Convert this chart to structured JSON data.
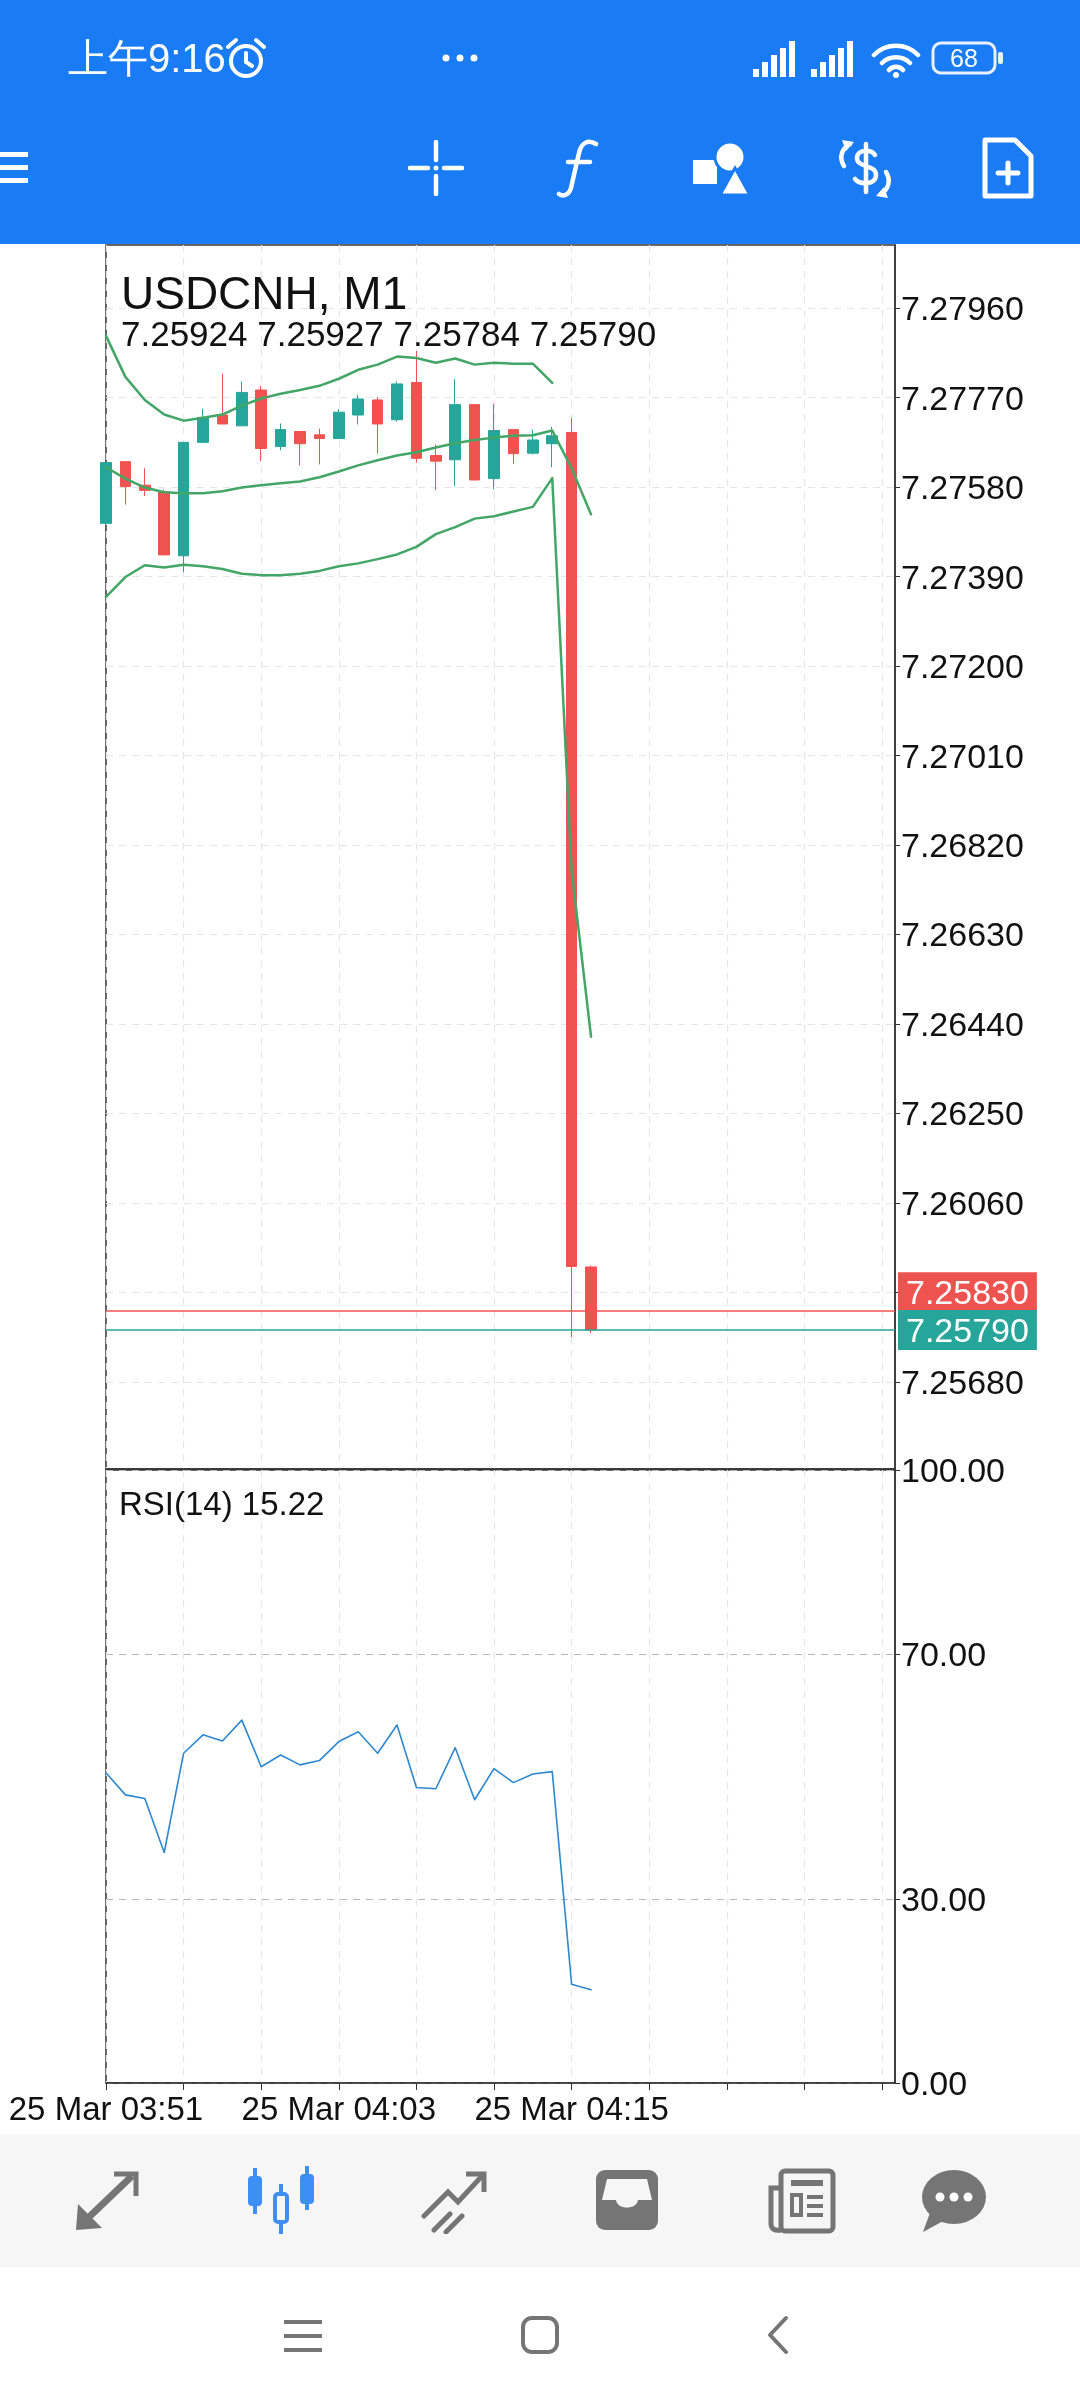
{
  "chart_data": [
    {
      "type": "candlestick",
      "title": "USDCNH, M1",
      "subtitle": "7.25924 7.25927 7.25784 7.25790",
      "annotations": [
        "上午9:16",
        "68"
      ],
      "x": [
        "--03-25T03:51",
        "--03-25T03:52",
        "--03-25T03:53",
        "--03-25T03:54",
        "--03-25T03:55",
        "--03-25T03:56",
        "--03-25T03:57",
        "--03-25T03:58",
        "--03-25T03:59",
        "--03-25T04:00",
        "--03-25T04:01",
        "--03-25T04:02",
        "--03-25T04:03",
        "--03-25T04:04",
        "--03-25T04:05",
        "--03-25T04:06",
        "--03-25T04:07",
        "--03-25T04:08",
        "--03-25T04:09",
        "--03-25T04:10",
        "--03-25T04:11",
        "--03-25T04:12",
        "--03-25T04:13",
        "--03-25T04:14",
        "--03-25T04:15",
        "--03-25T04:16"
      ],
      "ohlc": [
        [
          7.27503,
          7.27632,
          7.27503,
          7.27632
        ],
        [
          7.27634,
          7.27634,
          7.27543,
          7.27581
        ],
        [
          7.27584,
          7.2762,
          7.27561,
          7.27573
        ],
        [
          7.2757,
          7.27575,
          7.27436,
          7.27436
        ],
        [
          7.27434,
          7.27676,
          7.27399,
          7.27675
        ],
        [
          7.27675,
          7.27746,
          7.27675,
          7.27728
        ],
        [
          7.27733,
          7.27821,
          7.27714,
          7.27714
        ],
        [
          7.2771,
          7.27804,
          7.2771,
          7.27781
        ],
        [
          7.27786,
          7.27795,
          7.27635,
          7.27662
        ],
        [
          7.27666,
          7.27715,
          7.27658,
          7.27702
        ],
        [
          7.27698,
          7.27698,
          7.27626,
          7.27672
        ],
        [
          7.27691,
          7.27704,
          7.27628,
          7.27683
        ],
        [
          7.27683,
          7.27746,
          7.27683,
          7.27739
        ],
        [
          7.27733,
          7.27776,
          7.27713,
          7.27767
        ],
        [
          7.27765,
          7.27771,
          7.27651,
          7.27714
        ],
        [
          7.27723,
          7.27804,
          7.27719,
          7.27799
        ],
        [
          7.27802,
          7.27869,
          7.27632,
          7.27641
        ],
        [
          7.27647,
          7.2767,
          7.27573,
          7.27635
        ],
        [
          7.27638,
          7.27809,
          7.27582,
          7.27755
        ],
        [
          7.27755,
          7.27755,
          7.27595,
          7.27595
        ],
        [
          7.27598,
          7.27757,
          7.27575,
          7.277
        ],
        [
          7.27702,
          7.27702,
          7.27629,
          7.27651
        ],
        [
          7.27652,
          7.27702,
          7.27649,
          7.2768
        ],
        [
          7.27672,
          7.27708,
          7.27622,
          7.27689
        ],
        [
          7.27696,
          7.27727,
          7.25775,
          7.25925
        ],
        [
          7.25924,
          7.25927,
          7.25784,
          7.2579
        ]
      ],
      "colors": [
        "#26a69a",
        "#ef5350",
        "#ef5350",
        "#ef5350",
        "#26a69a",
        "#26a69a",
        "#ef5350",
        "#26a69a",
        "#ef5350",
        "#26a69a",
        "#ef5350",
        "#ef5350",
        "#26a69a",
        "#26a69a",
        "#ef5350",
        "#26a69a",
        "#ef5350",
        "#ef5350",
        "#26a69a",
        "#ef5350",
        "#26a69a",
        "#ef5350",
        "#26a69a",
        "#26a69a",
        "#ef5350",
        "#ef5350"
      ],
      "series": [
        {
          "type": "line",
          "color": "#43a566",
          "values": [
            7.27901,
            7.27814,
            7.27765,
            7.27734,
            7.27721,
            7.27727,
            7.27734,
            7.27753,
            7.27768,
            7.27778,
            7.27786,
            7.27795,
            7.2781,
            7.27829,
            7.2784,
            7.27857,
            7.27854,
            7.27844,
            7.27853,
            7.2784,
            7.27844,
            7.27842,
            7.27842,
            7.27801,
            null,
            null
          ]
        },
        {
          "type": "line",
          "color": "#43a566",
          "values": [
            7.27622,
            7.27598,
            7.27579,
            7.27569,
            7.27567,
            7.27567,
            7.27571,
            7.27579,
            7.27584,
            7.27588,
            7.27592,
            7.27601,
            7.27613,
            7.27626,
            7.27637,
            7.27647,
            7.27654,
            7.27664,
            7.27673,
            7.2768,
            7.27685,
            7.27689,
            7.2769,
            7.277,
            7.2762,
            7.27522
          ]
        },
        {
          "type": "line",
          "color": "#43a566",
          "values": [
            7.27347,
            7.27389,
            7.27414,
            7.27409,
            7.27415,
            7.27412,
            7.27406,
            7.27396,
            7.27393,
            7.27393,
            7.27396,
            7.27402,
            7.27412,
            7.27418,
            7.27427,
            7.27437,
            7.27453,
            7.2748,
            7.27495,
            7.27513,
            7.27518,
            7.27528,
            7.27538,
            7.27599,
            7.26766,
            7.26413
          ]
        }
      ],
      "xlim": [
        "--03-25T03:51",
        "--03-25T04:31:40"
      ],
      "xticks": [
        {
          "value": "--03-25T03:51",
          "label": "25 Mar 03:51"
        },
        {
          "value": "--03-25T03:55",
          "label": null
        },
        {
          "value": "--03-25T03:59",
          "label": null
        },
        {
          "value": "--03-25T04:03",
          "label": "25 Mar 04:03"
        },
        {
          "value": "--03-25T04:07",
          "label": null
        },
        {
          "value": "--03-25T04:11",
          "label": null
        },
        {
          "value": "--03-25T04:15",
          "label": "25 Mar 04:15"
        },
        {
          "value": "--03-25T04:19",
          "label": null
        },
        {
          "value": "--03-25T04:23",
          "label": null
        },
        {
          "value": "--03-25T04:27",
          "label": null
        },
        {
          "value": "--03-25T04:31",
          "label": null
        }
      ],
      "ylim": [
        7.25495,
        7.28094
      ],
      "yticks": [
        {
          "value": 7.2568,
          "label": "7.25680"
        },
        {
          "value": 7.2587,
          "label": null
        },
        {
          "value": 7.2606,
          "label": "7.26060"
        },
        {
          "value": 7.2625,
          "label": "7.26250"
        },
        {
          "value": 7.2644,
          "label": "7.26440"
        },
        {
          "value": 7.2663,
          "label": "7.26630"
        },
        {
          "value": 7.2682,
          "label": "7.26820"
        },
        {
          "value": 7.2701,
          "label": "7.27010"
        },
        {
          "value": 7.272,
          "label": "7.27200"
        },
        {
          "value": 7.2739,
          "label": "7.27390"
        },
        {
          "value": 7.2758,
          "label": "7.27580"
        },
        {
          "value": 7.2777,
          "label": "7.27770"
        },
        {
          "value": 7.2796,
          "label": "7.27960"
        }
      ],
      "ref_lines": [
        {
          "axis": "y",
          "value": 7.2583,
          "label": "7.25830",
          "color": "#ef5350"
        },
        {
          "axis": "y",
          "value": 7.2579,
          "label": "7.25790",
          "color": "#26a69a"
        }
      ],
      "grid": true,
      "tick_labels": "y"
    },
    {
      "type": "line",
      "title": "RSI(14) 15.22",
      "x": [
        "--03-25T03:51",
        "--03-25T03:52",
        "--03-25T03:53",
        "--03-25T03:54",
        "--03-25T03:55",
        "--03-25T03:56",
        "--03-25T03:57",
        "--03-25T03:58",
        "--03-25T03:59",
        "--03-25T04:00",
        "--03-25T04:01",
        "--03-25T04:02",
        "--03-25T04:03",
        "--03-25T04:04",
        "--03-25T04:05",
        "--03-25T04:06",
        "--03-25T04:07",
        "--03-25T04:08",
        "--03-25T04:09",
        "--03-25T04:10",
        "--03-25T04:11",
        "--03-25T04:12",
        "--03-25T04:13",
        "--03-25T04:14",
        "--03-25T04:15",
        "--03-25T04:16"
      ],
      "series": [
        {
          "color": "#2e88cf",
          "values": [
            50.6,
            47.0,
            46.4,
            37.6,
            53.8,
            56.8,
            55.8,
            59.2,
            51.6,
            53.5,
            51.9,
            52.6,
            55.7,
            57.3,
            53.8,
            58.4,
            48.2,
            48.0,
            54.7,
            46.2,
            51.3,
            49.0,
            50.4,
            50.8,
            16.1,
            15.22
          ]
        }
      ],
      "xlim": [
        "--03-25T03:51",
        "--03-25T04:31:40"
      ],
      "xticks": [
        {
          "value": "--03-25T03:51",
          "label": "25 Mar 03:51"
        },
        {
          "value": "--03-25T03:55",
          "label": null
        },
        {
          "value": "--03-25T03:59",
          "label": null
        },
        {
          "value": "--03-25T04:03",
          "label": "25 Mar 04:03"
        },
        {
          "value": "--03-25T04:07",
          "label": null
        },
        {
          "value": "--03-25T04:11",
          "label": null
        },
        {
          "value": "--03-25T04:15",
          "label": "25 Mar 04:15"
        },
        {
          "value": "--03-25T04:19",
          "label": null
        },
        {
          "value": "--03-25T04:23",
          "label": null
        },
        {
          "value": "--03-25T04:27",
          "label": null
        },
        {
          "value": "--03-25T04:31",
          "label": null
        }
      ],
      "ylim": [
        0,
        100
      ],
      "yticks": [
        {
          "value": 0,
          "label": "0.00"
        },
        {
          "value": 30,
          "label": "30.00"
        },
        {
          "value": 70,
          "label": "70.00"
        },
        {
          "value": 100,
          "label": "100.00"
        }
      ],
      "grid": true
    }
  ]
}
